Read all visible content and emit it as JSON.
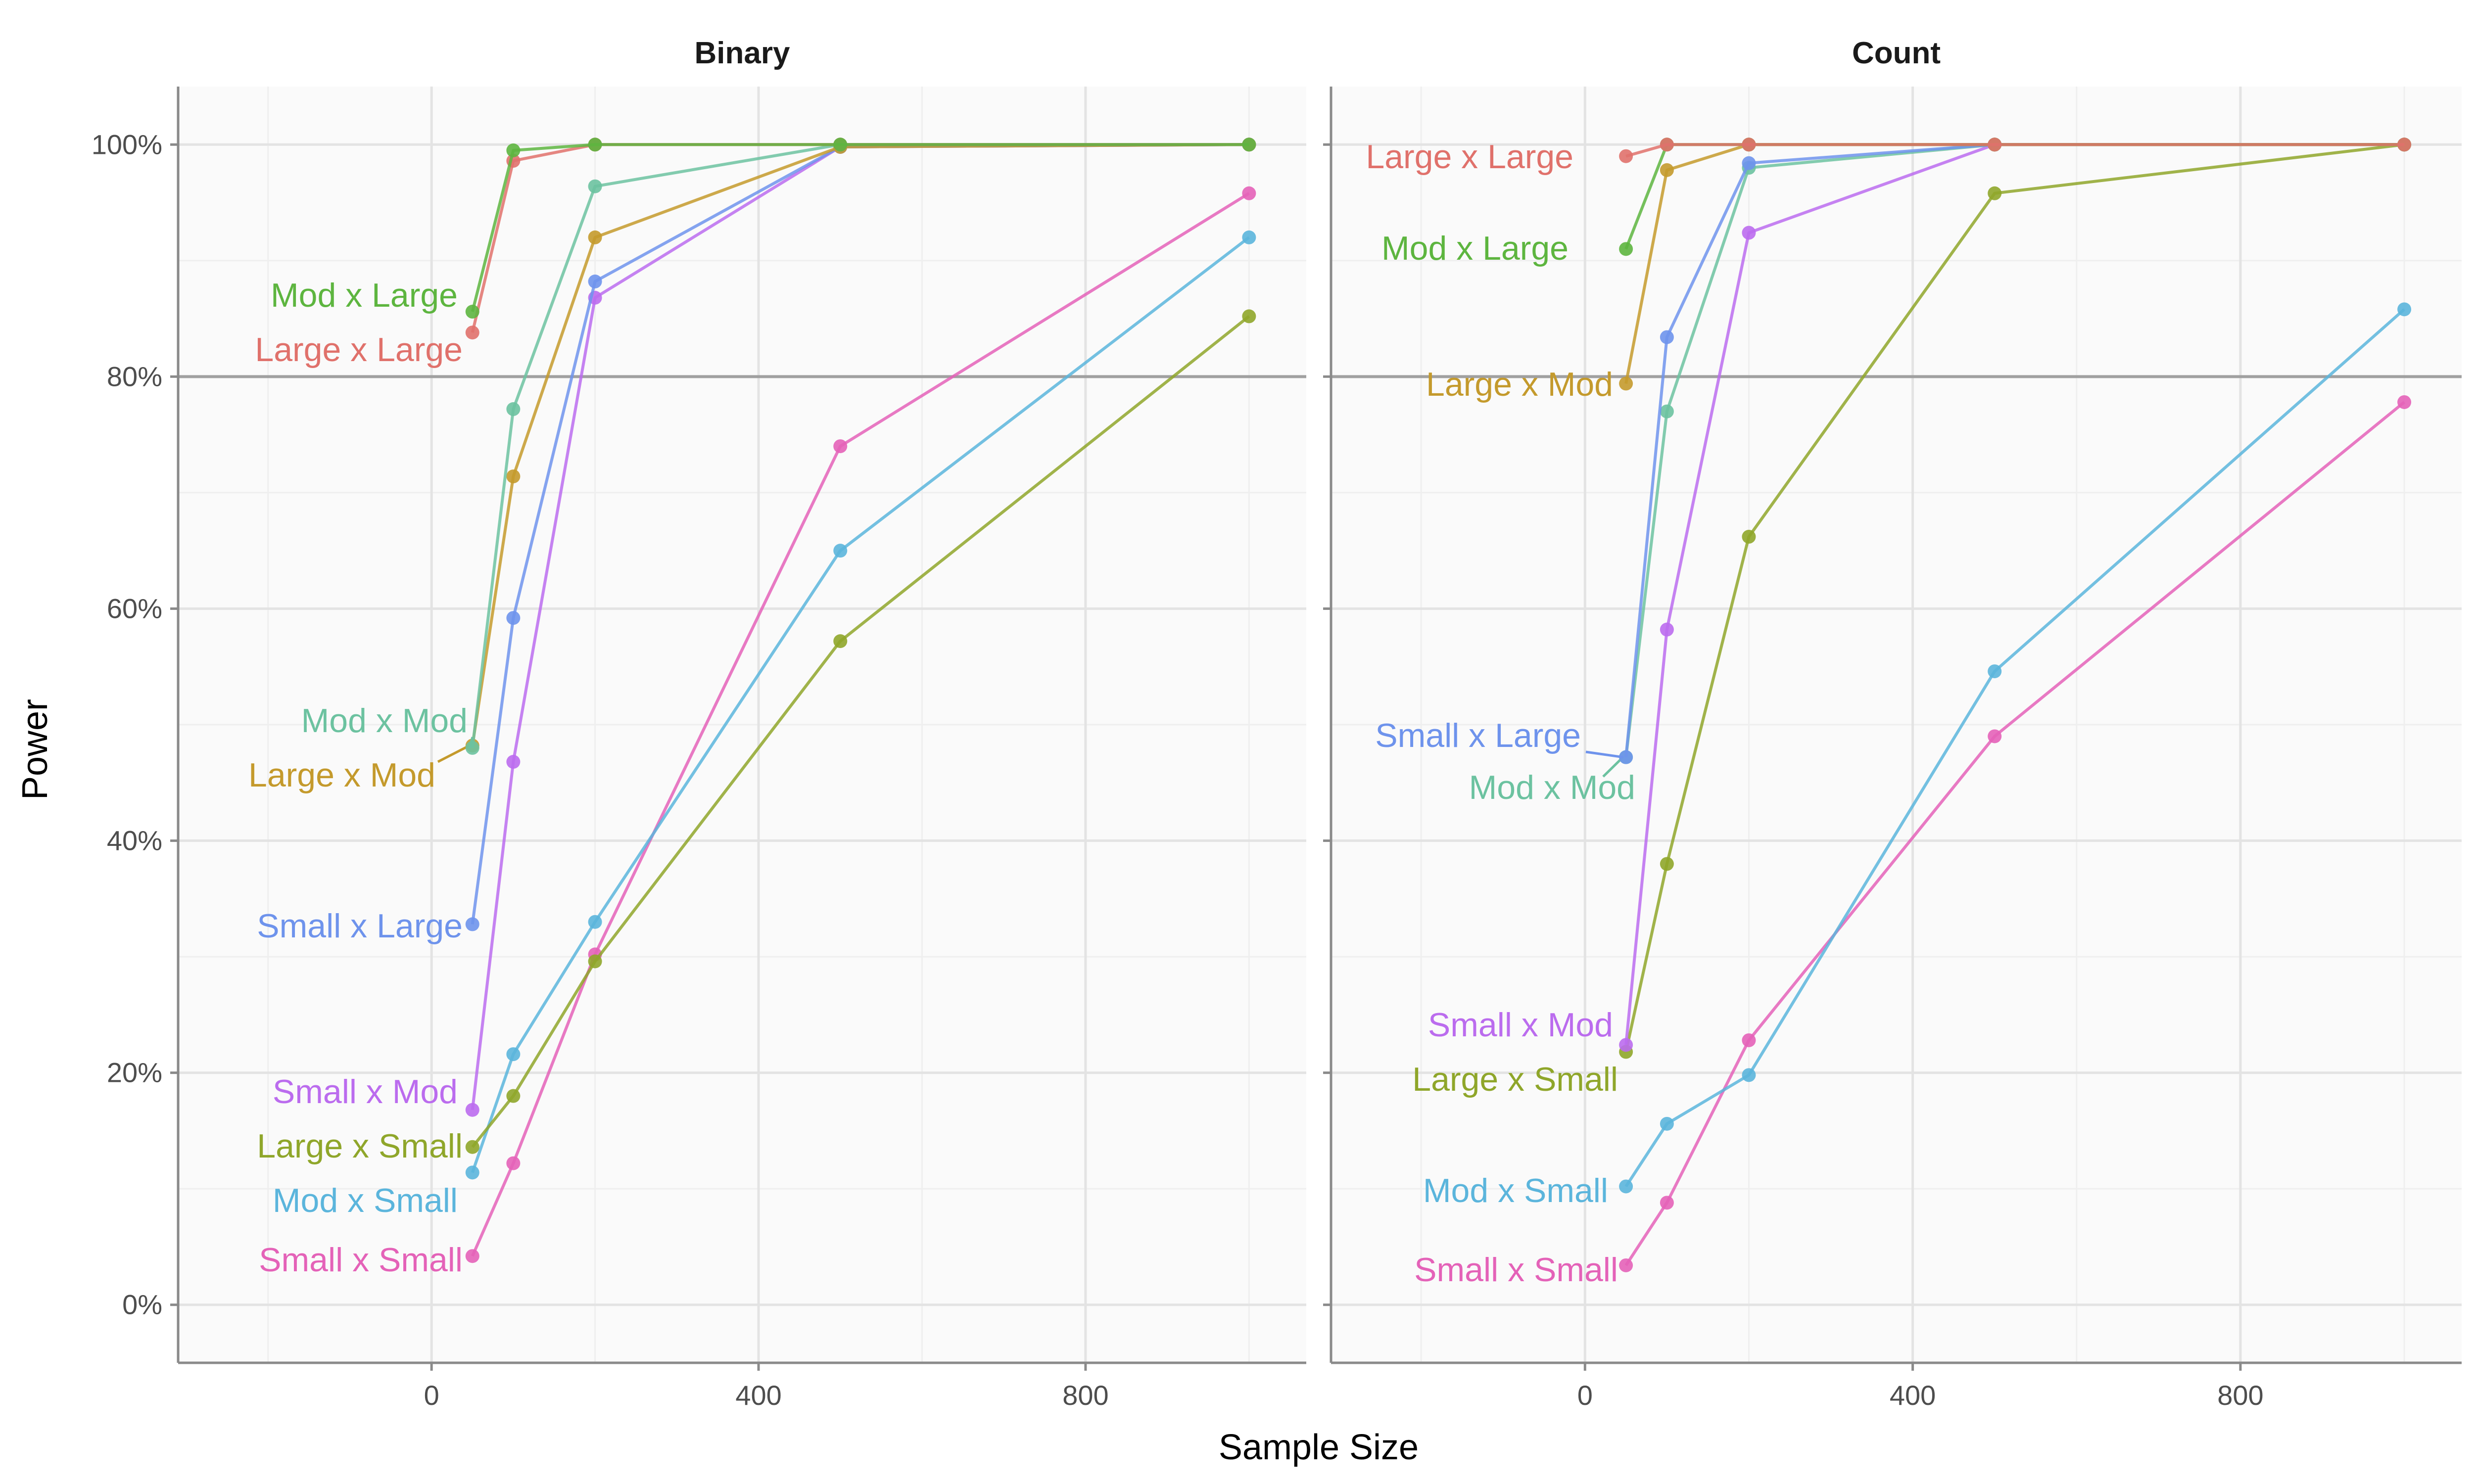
{
  "chart_data": {
    "type": "line",
    "xlabel": "Sample Size",
    "ylabel": "Power",
    "xlim": [
      -310,
      1070
    ],
    "ylim": [
      -0.05,
      1.05
    ],
    "x_ticks": [
      0,
      400,
      800
    ],
    "x_tick_labels": [
      "0",
      "400",
      "800"
    ],
    "y_ticks": [
      0,
      0.2,
      0.4,
      0.6,
      0.8,
      1.0
    ],
    "y_tick_labels": [
      "0%",
      "20%",
      "40%",
      "60%",
      "80%",
      "100%"
    ],
    "reference_line": 0.8,
    "grid": true,
    "legend": "direct labels at left end of each series",
    "x": [
      50,
      100,
      200,
      500,
      1000
    ],
    "panels": [
      {
        "title": "Binary",
        "series": [
          {
            "name": "Mod x Large",
            "color": "#5DB53F",
            "values": [
              0.856,
              0.995,
              1.0,
              1.0,
              1.0
            ]
          },
          {
            "name": "Large x Large",
            "color": "#E0716B",
            "values": [
              0.838,
              0.986,
              1.0,
              1.0,
              1.0
            ]
          },
          {
            "name": "Mod x Mod",
            "color": "#6CC2A0",
            "values": [
              0.48,
              0.772,
              0.964,
              1.0,
              1.0
            ]
          },
          {
            "name": "Large x Mod",
            "color": "#C49A2C",
            "values": [
              0.482,
              0.714,
              0.92,
              0.998,
              1.0
            ]
          },
          {
            "name": "Small x Large",
            "color": "#6E93EC",
            "values": [
              0.328,
              0.592,
              0.882,
              0.998,
              1.0
            ]
          },
          {
            "name": "Small x Mod",
            "color": "#BB6CEE",
            "values": [
              0.168,
              0.468,
              0.868,
              0.998,
              1.0
            ]
          },
          {
            "name": "Large x Small",
            "color": "#8FA62A",
            "values": [
              0.136,
              0.18,
              0.296,
              0.572,
              0.852
            ]
          },
          {
            "name": "Mod x Small",
            "color": "#5BB5DC",
            "values": [
              0.114,
              0.216,
              0.33,
              0.65,
              0.92
            ]
          },
          {
            "name": "Small x Small",
            "color": "#E462B8",
            "values": [
              0.042,
              0.122,
              0.302,
              0.74,
              0.958
            ]
          }
        ]
      },
      {
        "title": "Count",
        "series": [
          {
            "name": "Large x Large",
            "color": "#E0716B",
            "values": [
              0.99,
              1.0,
              1.0,
              1.0,
              1.0
            ]
          },
          {
            "name": "Mod x Large",
            "color": "#5DB53F",
            "values": [
              0.91,
              1.0,
              1.0,
              1.0,
              1.0
            ]
          },
          {
            "name": "Large x Mod",
            "color": "#C49A2C",
            "values": [
              0.794,
              0.978,
              1.0,
              1.0,
              1.0
            ]
          },
          {
            "name": "Small x Large",
            "color": "#6E93EC",
            "values": [
              0.472,
              0.834,
              0.984,
              1.0,
              1.0
            ]
          },
          {
            "name": "Mod x Mod",
            "color": "#6CC2A0",
            "values": [
              0.472,
              0.77,
              0.98,
              1.0,
              1.0
            ]
          },
          {
            "name": "Small x Mod",
            "color": "#BB6CEE",
            "values": [
              0.224,
              0.582,
              0.924,
              1.0,
              1.0
            ]
          },
          {
            "name": "Large x Small",
            "color": "#8FA62A",
            "values": [
              0.218,
              0.38,
              0.662,
              0.958,
              1.0
            ]
          },
          {
            "name": "Mod x Small",
            "color": "#5BB5DC",
            "values": [
              0.102,
              0.156,
              0.198,
              0.546,
              0.858
            ]
          },
          {
            "name": "Small x Small",
            "color": "#E462B8",
            "values": [
              0.034,
              0.088,
              0.228,
              0.49,
              0.778
            ]
          }
        ]
      }
    ]
  }
}
